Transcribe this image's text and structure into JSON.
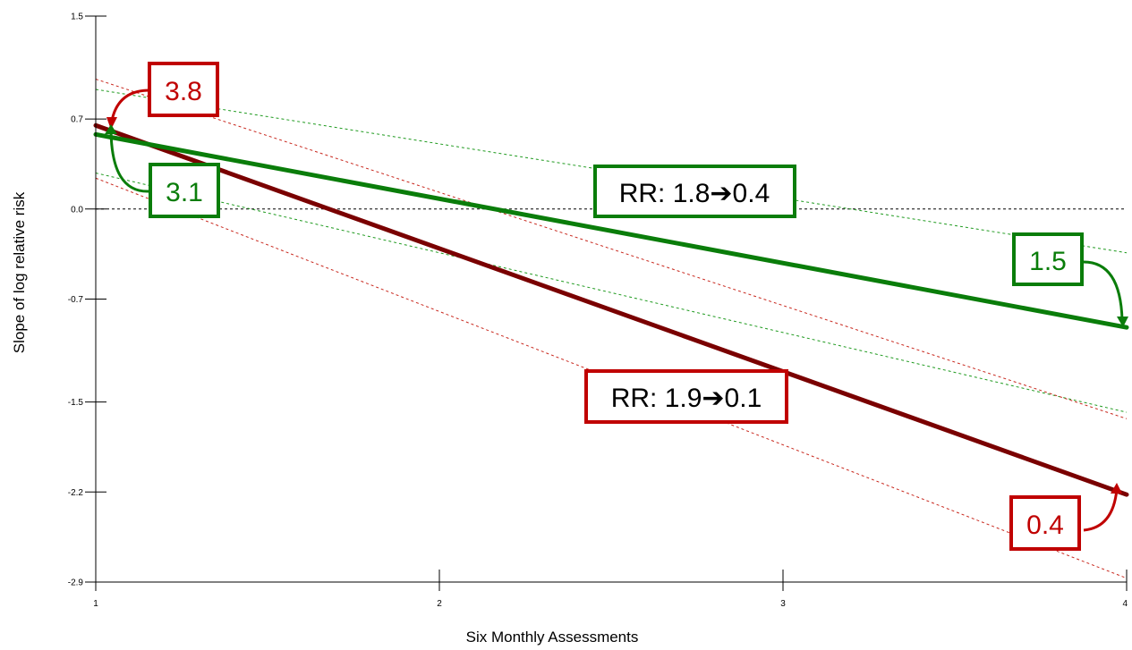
{
  "chart_data": {
    "type": "line",
    "xlabel": "Six Monthly Assessments",
    "ylabel": "Slope of log relative risk",
    "x_ticks": [
      "1",
      "2",
      "3",
      "4"
    ],
    "y_ticks": [
      "1.5",
      "0.7",
      "0.0",
      "-0.7",
      "-1.5",
      "-2.2",
      "-2.9"
    ],
    "xlim": [
      1,
      4
    ],
    "ylim": [
      -2.9,
      1.5
    ],
    "reference_line_y": 0.0,
    "grid": false,
    "colors": {
      "green": "#0a7d0a",
      "green_ci": "#1f9a1f",
      "red_line": "#7a0000",
      "red_box": "#c00000",
      "red_ci": "#c8281e",
      "black": "#000000"
    },
    "series": [
      {
        "color_key": "green",
        "x": [
          1,
          4
        ],
        "y": [
          0.58,
          -0.92
        ],
        "ci_upper": {
          "x": [
            1,
            4
          ],
          "y": [
            0.93,
            -0.34
          ]
        },
        "ci_lower": {
          "x": [
            1,
            4
          ],
          "y": [
            0.28,
            -1.58
          ]
        }
      },
      {
        "color_key": "red",
        "x": [
          1,
          4
        ],
        "y": [
          0.65,
          -2.22
        ],
        "ci_upper": {
          "x": [
            1,
            4
          ],
          "y": [
            1.01,
            -1.63
          ]
        },
        "ci_lower": {
          "x": [
            1,
            4
          ],
          "y": [
            0.24,
            -2.87
          ]
        }
      }
    ],
    "annotations": {
      "red_start": {
        "text": "3.8",
        "color_key": "red_box"
      },
      "green_start": {
        "text": "3.1",
        "color_key": "green"
      },
      "green_end": {
        "text": "1.5",
        "color_key": "green"
      },
      "red_end": {
        "text": "0.4",
        "color_key": "red_box"
      },
      "green_rr": {
        "text": "RR: 1.8➔0.4",
        "color_key": "green"
      },
      "red_rr": {
        "text": "RR: 1.9➔0.1",
        "color_key": "red_box"
      }
    }
  }
}
